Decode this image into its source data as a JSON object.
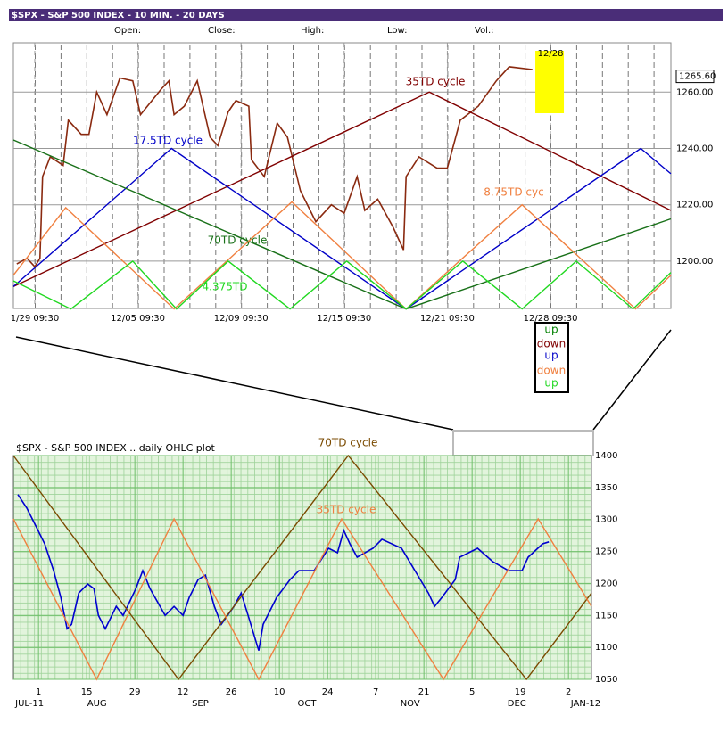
{
  "chart_data": [
    {
      "type": "line",
      "title": "$SPX - S&P 500 INDEX - 10 MIN. - 20 DAYS",
      "fields": [
        "Open:",
        "Close:",
        "High:",
        "Low:",
        "Vol.:"
      ],
      "xlim": [
        -0.83,
        24.67
      ],
      "xticks": [
        {
          "value": 0,
          "label": "1/29 09:30"
        },
        {
          "value": 4,
          "label": "12/05 09:30"
        },
        {
          "value": 8,
          "label": "12/09 09:30"
        },
        {
          "value": 12,
          "label": "12/15 09:30"
        },
        {
          "value": 16,
          "label": "12/21 09:30"
        },
        {
          "value": 20,
          "label": "12/28 09:30"
        }
      ],
      "ylim": [
        1183.2,
        1277.5
      ],
      "yticks": [
        {
          "value": 1200,
          "label": "1200.00"
        },
        {
          "value": 1220,
          "label": "1220.00"
        },
        {
          "value": 1240,
          "label": "1240.00"
        },
        {
          "value": 1260,
          "label": "1260.00"
        }
      ],
      "grid": true,
      "last_price": {
        "value": 1265.6,
        "label": "1265.60"
      },
      "highlight": {
        "label": "12/28",
        "color": "#ffff00"
      },
      "series": [
        {
          "color": "#8a2a10",
          "x": [
            -0.7,
            -0.3,
            0.0,
            0.2,
            0.3,
            0.6,
            1.1,
            1.3,
            1.8,
            2.1,
            2.4,
            2.8,
            3.3,
            3.8,
            4.1,
            4.9,
            5.2,
            5.4,
            5.8,
            6.3,
            6.8,
            7.1,
            7.5,
            7.8,
            8.3,
            8.4,
            8.9,
            9.4,
            9.8,
            10.3,
            10.9,
            11.5,
            12.0,
            12.5,
            12.8,
            13.3,
            13.9,
            14.3,
            14.4,
            14.9,
            15.6,
            16.0,
            16.5,
            17.2,
            17.9,
            18.4,
            19.3
          ],
          "values": [
            1199,
            1201,
            1198,
            1201,
            1230,
            1237,
            1234,
            1250,
            1245,
            1245,
            1260,
            1252,
            1265,
            1264,
            1252,
            1261,
            1264,
            1252,
            1255,
            1264,
            1244,
            1241,
            1253,
            1257,
            1255,
            1236,
            1230,
            1249,
            1244,
            1225,
            1214,
            1220,
            1217,
            1230,
            1218,
            1222,
            1212,
            1204,
            1230,
            1237,
            1233,
            1233,
            1250,
            1255,
            1264,
            1269,
            1268
          ]
        },
        {
          "name": "35TD cycle",
          "color": "#800000",
          "x": [
            -0.83,
            15.3,
            24.67
          ],
          "values": [
            1191,
            1260,
            1218
          ]
        },
        {
          "name": "17.5TD cycle",
          "color": "#0000c8",
          "x": [
            -0.83,
            5.3,
            14.4,
            23.5,
            24.67
          ],
          "values": [
            1191,
            1240,
            1183,
            1240,
            1231
          ]
        },
        {
          "name": "70TD cycle",
          "color": "#187018",
          "x": [
            -0.83,
            14.4,
            24.67
          ],
          "values": [
            1243,
            1183,
            1215
          ]
        },
        {
          "name": "8.75TD cyc",
          "color": "#f08040",
          "x": [
            -0.83,
            1.2,
            5.4,
            9.97,
            14.4,
            18.9,
            23.3,
            24.67
          ],
          "values": [
            1195,
            1219,
            1183,
            1221,
            1183,
            1220,
            1183,
            1195
          ]
        },
        {
          "name": "4.375TD",
          "color": "#20d820",
          "x": [
            -0.83,
            1.4,
            3.8,
            5.5,
            7.5,
            9.9,
            12.1,
            14.4,
            16.6,
            18.9,
            21.0,
            23.2,
            24.67
          ],
          "values": [
            1193,
            1183,
            1200,
            1183,
            1200,
            1183,
            1200,
            1183,
            1200,
            1183,
            1200,
            1183,
            1196
          ]
        }
      ],
      "direction_key": [
        {
          "text": "up",
          "color": "#008000"
        },
        {
          "text": "down",
          "color": "#800000"
        },
        {
          "text": "up",
          "color": "#0000c8"
        },
        {
          "text": "down",
          "color": "#f08040"
        },
        {
          "text": "up",
          "color": "#20d820"
        }
      ]
    },
    {
      "type": "line",
      "title": "$SPX - S&P 500 INDEX .. daily OHLC plot",
      "xlim": [
        -7.3,
        160.7
      ],
      "xticks": [
        {
          "value": 0,
          "label": "1"
        },
        {
          "value": 14,
          "label": "15"
        },
        {
          "value": 28,
          "label": "29"
        },
        {
          "value": 42,
          "label": "12"
        },
        {
          "value": 56,
          "label": "26"
        },
        {
          "value": 70,
          "label": "10"
        },
        {
          "value": 84,
          "label": "24"
        },
        {
          "value": 98,
          "label": "7"
        },
        {
          "value": 112,
          "label": "21"
        },
        {
          "value": 126,
          "label": "5"
        },
        {
          "value": 140,
          "label": "19"
        },
        {
          "value": 154,
          "label": "2"
        }
      ],
      "xticks2": [
        {
          "value": -2.6,
          "label": "JUL-11"
        },
        {
          "value": 17,
          "label": "AUG"
        },
        {
          "value": 47,
          "label": "SEP"
        },
        {
          "value": 78,
          "label": "OCT"
        },
        {
          "value": 108,
          "label": "NOV"
        },
        {
          "value": 139,
          "label": "DEC"
        },
        {
          "value": 159,
          "label": "JAN-12"
        }
      ],
      "ylim": [
        1050,
        1400
      ],
      "yticks": [
        1050,
        1100,
        1150,
        1200,
        1250,
        1300,
        1350,
        1400
      ],
      "grid": true,
      "series": [
        {
          "color": "#0000d0",
          "x": [
            -6.0,
            -3.4,
            -0.8,
            1.8,
            4.4,
            6.5,
            8.3,
            9.6,
            11.7,
            14.3,
            16.1,
            17.4,
            19.4,
            22.6,
            24.6,
            28.3,
            30.3,
            32.4,
            36.8,
            39.4,
            42.0,
            43.8,
            46.4,
            48.5,
            51.1,
            53.1,
            56.8,
            58.9,
            60.9,
            64.0,
            65.3,
            69.2,
            73.1,
            75.7,
            80.1,
            84.3,
            86.9,
            88.7,
            90.5,
            92.6,
            97.2,
            99.8,
            105.5,
            109.4,
            113.3,
            115.1,
            117.2,
            121.1,
            122.4,
            127.6,
            132.0,
            136.6,
            140.5,
            142.3,
            146.5,
            148.3
          ],
          "values": [
            1339,
            1318,
            1290,
            1262,
            1220,
            1178,
            1129,
            1136,
            1185,
            1199,
            1192,
            1150,
            1129,
            1164,
            1150,
            1192,
            1220,
            1192,
            1150,
            1164,
            1150,
            1178,
            1206,
            1213,
            1164,
            1136,
            1164,
            1185,
            1150,
            1095,
            1136,
            1178,
            1206,
            1220,
            1220,
            1255,
            1248,
            1283,
            1262,
            1241,
            1255,
            1269,
            1255,
            1220,
            1185,
            1164,
            1178,
            1206,
            1241,
            1255,
            1234,
            1220,
            1220,
            1241,
            1262,
            1265
          ]
        },
        {
          "name": "70TD cycle",
          "color": "#7a4a00",
          "x": [
            -7.3,
            40.7,
            90.0,
            141.8,
            160.7
          ],
          "values": [
            1400,
            1050,
            1400,
            1050,
            1185
          ]
        },
        {
          "name": "35TD cycle",
          "color": "#f08040",
          "x": [
            -7.3,
            16.9,
            39.4,
            64.0,
            88.1,
            117.7,
            145.2,
            160.7
          ],
          "values": [
            1301,
            1050,
            1301,
            1050,
            1301,
            1050,
            1301,
            1164
          ]
        }
      ]
    }
  ]
}
